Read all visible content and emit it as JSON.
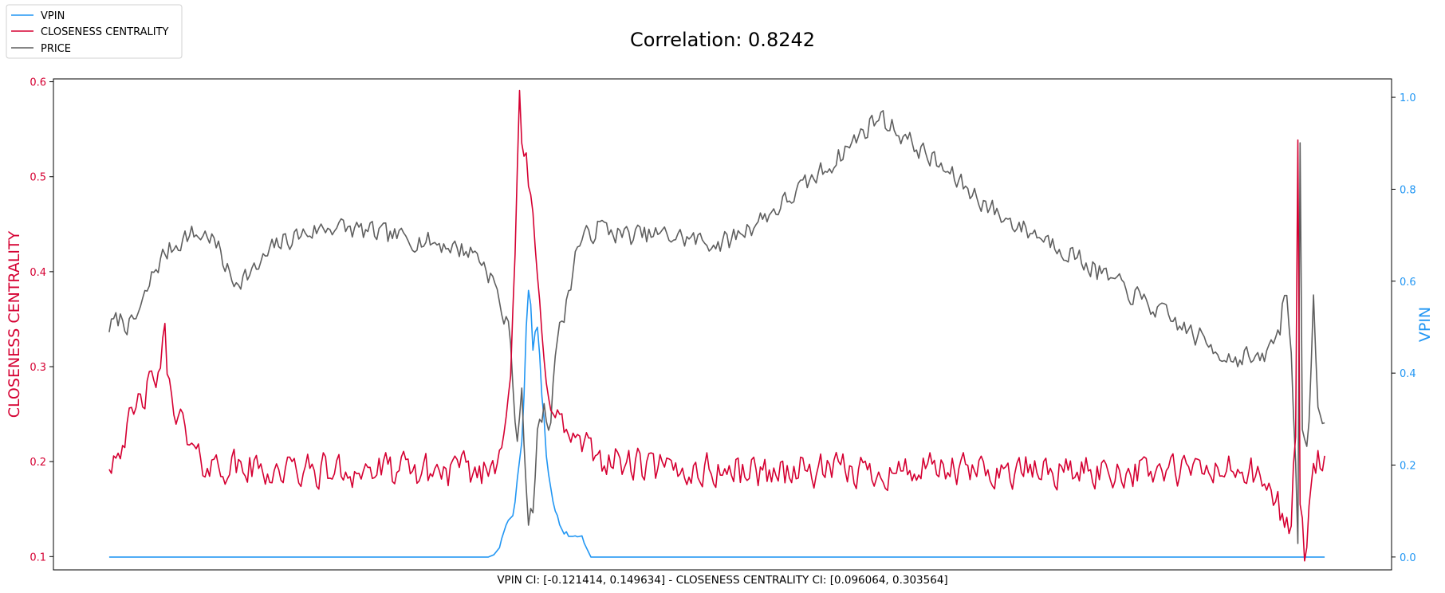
{
  "chart_data": {
    "type": "line",
    "title": "Correlation: 0.8242",
    "xlabel": "VPIN CI: [-0.121414, 0.149634] - CLOSENESS CENTRALITY CI: [0.096064, 0.303564]",
    "ylabel_left": "CLOSENESS CENTRALITY",
    "ylabel_right": "VPIN",
    "left_axis": {
      "ylim": [
        0.086,
        0.603
      ],
      "ticks": [
        "0.1",
        "0.2",
        "0.3",
        "0.4",
        "0.5",
        "0.6"
      ],
      "tick_values": [
        0.1,
        0.2,
        0.3,
        0.4,
        0.5,
        0.6
      ]
    },
    "right_axis": {
      "ylim": [
        -0.028,
        1.04
      ],
      "ticks": [
        "0.0",
        "0.2",
        "0.4",
        "0.6",
        "0.8",
        "1.0"
      ],
      "tick_values": [
        0.0,
        0.2,
        0.4,
        0.6,
        0.8,
        1.0
      ]
    },
    "xlim": [
      -50,
      1150
    ],
    "grid": false,
    "legend_placement": "top-left (outside plot)",
    "colors": {
      "vpin": "#2196f3",
      "closeness": "#d50032",
      "price": "#5f5f5f"
    },
    "series": [
      {
        "name": "VPIN",
        "axis": "right",
        "x": [
          0,
          340,
          345,
          350,
          352,
          356,
          358,
          362,
          364,
          366,
          368,
          370,
          372,
          374,
          376,
          378,
          380,
          382,
          384,
          386,
          388,
          390,
          392,
          394,
          396,
          398,
          400,
          402,
          404,
          406,
          408,
          410,
          412,
          414,
          416,
          418,
          420,
          424,
          426,
          428,
          430,
          432,
          1090
        ],
        "values": [
          0.0,
          0.0,
          0.005,
          0.02,
          0.04,
          0.07,
          0.08,
          0.09,
          0.12,
          0.17,
          0.21,
          0.25,
          0.35,
          0.5,
          0.58,
          0.55,
          0.45,
          0.49,
          0.5,
          0.44,
          0.35,
          0.3,
          0.22,
          0.18,
          0.15,
          0.12,
          0.1,
          0.09,
          0.07,
          0.06,
          0.05,
          0.055,
          0.045,
          0.045,
          0.045,
          0.046,
          0.044,
          0.046,
          0.03,
          0.02,
          0.01,
          0.0,
          0.0
        ]
      },
      {
        "name": "CLOSENESS CENTRALITY",
        "axis": "left",
        "keypoints": {
          "x": [
            0,
            20,
            30,
            40,
            45,
            50,
            52,
            55,
            60,
            70,
            80,
            100,
            150,
            200,
            250,
            300,
            340,
            350,
            360,
            365,
            368,
            370,
            374,
            378,
            382,
            388,
            394,
            400,
            410,
            420,
            430,
            450,
            500,
            600,
            700,
            800,
            900,
            1000,
            1020,
            1040,
            1050,
            1060,
            1064,
            1066,
            1068,
            1072,
            1080,
            1090
          ],
          "values": [
            0.2,
            0.24,
            0.27,
            0.28,
            0.3,
            0.33,
            0.3,
            0.27,
            0.26,
            0.22,
            0.2,
            0.195,
            0.19,
            0.19,
            0.19,
            0.19,
            0.19,
            0.21,
            0.3,
            0.45,
            0.58,
            0.53,
            0.52,
            0.47,
            0.42,
            0.33,
            0.28,
            0.25,
            0.23,
            0.22,
            0.21,
            0.2,
            0.19,
            0.19,
            0.19,
            0.19,
            0.19,
            0.19,
            0.19,
            0.17,
            0.15,
            0.13,
            0.23,
            0.53,
            0.16,
            0.1,
            0.2,
            0.2
          ]
        },
        "noise_amplitude": 0.022
      },
      {
        "name": "PRICE",
        "axis": "right",
        "keypoints": {
          "x": [
            0,
            10,
            20,
            30,
            40,
            50,
            70,
            90,
            100,
            110,
            130,
            150,
            170,
            200,
            250,
            300,
            330,
            345,
            350,
            360,
            365,
            370,
            375,
            380,
            385,
            390,
            395,
            400,
            405,
            410,
            420,
            440,
            460,
            500,
            550,
            600,
            650,
            690,
            700,
            720,
            760,
            800,
            850,
            900,
            950,
            1000,
            1010,
            1020,
            1030,
            1040,
            1050,
            1055,
            1060,
            1062,
            1064,
            1066,
            1068,
            1070,
            1075,
            1080,
            1085,
            1090
          ],
          "values": [
            0.5,
            0.52,
            0.5,
            0.55,
            0.62,
            0.66,
            0.7,
            0.7,
            0.66,
            0.6,
            0.62,
            0.68,
            0.7,
            0.72,
            0.7,
            0.68,
            0.66,
            0.6,
            0.55,
            0.48,
            0.25,
            0.35,
            0.08,
            0.1,
            0.3,
            0.32,
            0.28,
            0.45,
            0.5,
            0.55,
            0.68,
            0.72,
            0.7,
            0.7,
            0.68,
            0.76,
            0.86,
            0.96,
            0.94,
            0.9,
            0.82,
            0.74,
            0.68,
            0.6,
            0.52,
            0.44,
            0.43,
            0.44,
            0.42,
            0.45,
            0.5,
            0.6,
            0.45,
            0.3,
            0.2,
            0.05,
            0.92,
            0.3,
            0.2,
            0.55,
            0.3,
            0.3
          ]
        },
        "noise_amplitude": 0.028
      }
    ]
  }
}
